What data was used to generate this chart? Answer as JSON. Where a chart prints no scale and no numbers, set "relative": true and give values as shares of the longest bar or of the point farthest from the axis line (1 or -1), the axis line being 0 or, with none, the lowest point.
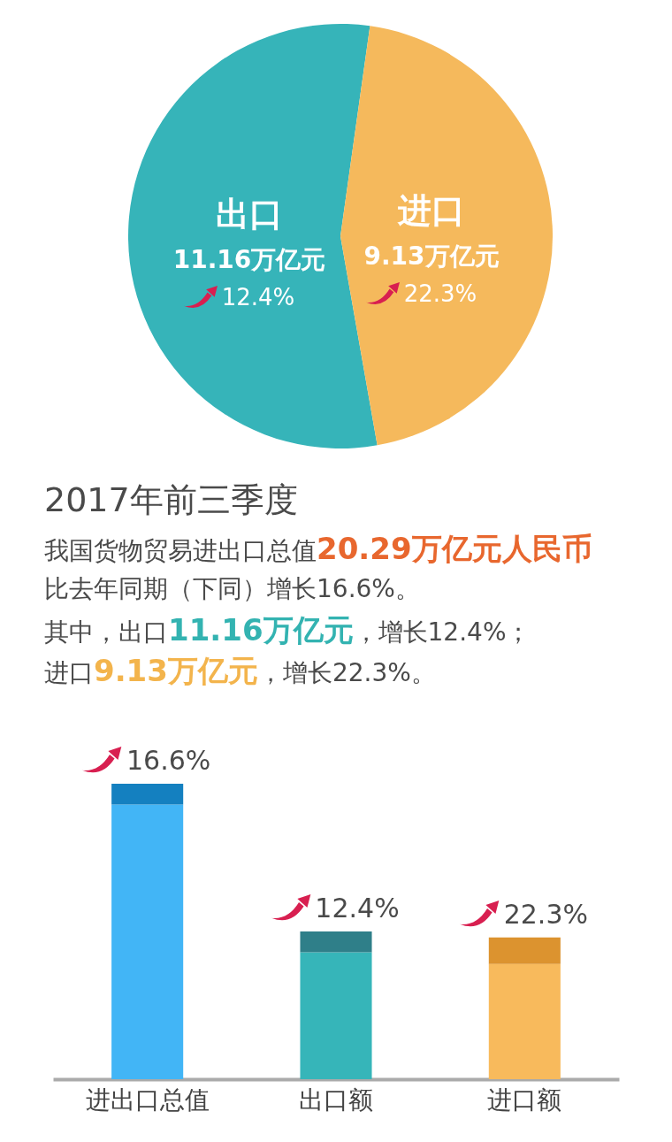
{
  "chart_data": [
    {
      "type": "pie",
      "categories": [
        "出口",
        "进口"
      ],
      "values": [
        11.16,
        9.13
      ],
      "colors": [
        "#36b4b9",
        "#f5b95c"
      ],
      "value_labels": [
        "11.16万亿元",
        "9.13万亿元"
      ],
      "annotations": [
        "12.4%",
        "22.3%"
      ]
    },
    {
      "type": "other",
      "title": "2017年前三季度",
      "annotations": [
        "我国货物贸易进出口总值20.29万亿元人民币",
        "比去年同期（下同）增长16.6%。",
        "其中，出口11.16万亿元，增长12.4%；",
        "进口9.13万亿元，增长22.3%。"
      ],
      "colors": [
        "#e8672e",
        "#33b3b1",
        "#f3b44c"
      ]
    },
    {
      "type": "bar",
      "categories": [
        "进出口总值",
        "出口额",
        "进口额"
      ],
      "relative": true,
      "stacked": true,
      "series": [
        {
          "colors": [
            "#42b5f6",
            "#36b5b9",
            "#f8ba5c"
          ],
          "values": [
            0.93,
            0.43,
            0.39
          ]
        },
        {
          "colors": [
            "#1480c0",
            "#2f7f89",
            "#dc932f"
          ],
          "values": [
            0.07,
            0.07,
            0.09
          ]
        }
      ],
      "annotations": [
        "16.6%",
        "12.4%",
        "22.3%"
      ]
    }
  ]
}
